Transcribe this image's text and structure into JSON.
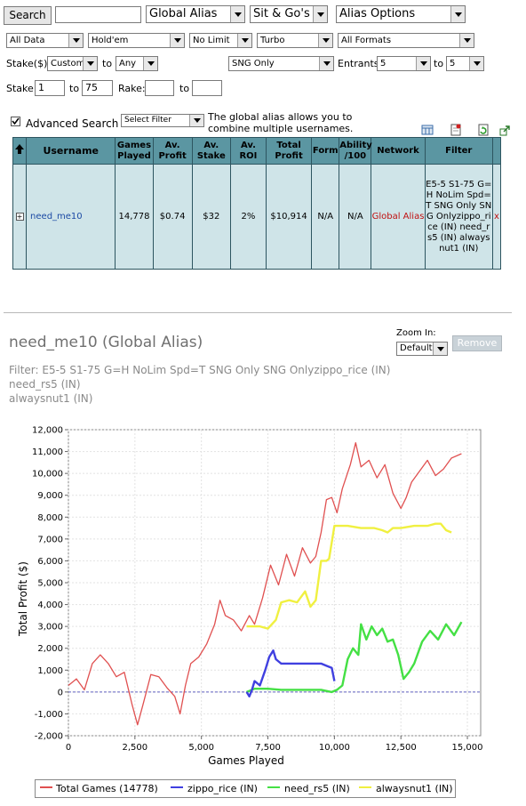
{
  "toolbar": {
    "search_label": "Search",
    "search_value": "",
    "alias_type": "Global Alias",
    "game_type": "Sit & Go's",
    "alias_options": "Alias Options"
  },
  "filters": {
    "data": "All Data",
    "game": "Hold'em",
    "limit": "No Limit",
    "speed": "Turbo",
    "format": "All Formats",
    "stake_label": "Stake($)",
    "stake_mode": "Custom",
    "to_label": "to",
    "stake_to": "Any",
    "sng_type": "SNG Only",
    "entrants_label": "Entrants",
    "entrants_from": "5",
    "entrants_to_label": "to",
    "entrants_to": "5",
    "stake_range_label": "Stake:",
    "stake_from_value": "1",
    "stake_range_to_label": "to",
    "stake_to_value": "75",
    "rake_label": "Rake:",
    "rake_from_value": "",
    "rake_to_label": "to",
    "rake_to_value": ""
  },
  "advanced": {
    "checked": true,
    "label": "Advanced Search",
    "select_filter": "Select Filter",
    "note": "The global alias allows you to combine multiple usernames."
  },
  "table": {
    "columns": [
      "Username",
      "Games Played",
      "Av. Profit",
      "Av. Stake",
      "Av. ROI",
      "Total Profit",
      "Form",
      "Ability /100",
      "Network",
      "Filter"
    ],
    "row": {
      "expand": "+",
      "username": "need_me10",
      "games_played": "14,778",
      "av_profit": "$0.74",
      "av_stake": "$32",
      "av_roi": "2%",
      "total_profit": "$10,914",
      "form": "N/A",
      "ability": "N/A",
      "network": "Global Alias",
      "filter": "E5-5 S1-75 G=H NoLim Spd=T SNG Only SNG Onlyzippo_rice (IN) need_rs5 (IN) alwaysnut1 (IN)",
      "remove": "x"
    }
  },
  "detail": {
    "title": "need_me10 (Global Alias)",
    "zoom_label": "Zoom In:",
    "zoom_value": "Default",
    "remove_label": "Remove",
    "filter_line1": "Filter: E5-5 S1-75 G=H NoLim Spd=T SNG Only SNG Onlyzippo_rice (IN)",
    "filter_line2": "need_rs5 (IN)",
    "filter_line3": "alwaysnut1 (IN)"
  },
  "colors": {
    "header_bg": "#5b96a2",
    "row_bg": "#cfe4e8",
    "total": "#e05050",
    "zippo": "#4040e0",
    "need_rs5": "#44e044",
    "alwaysnut1": "#f0f040"
  },
  "chart_data": {
    "type": "line",
    "xlabel": "Games Played",
    "ylabel": "Total Profit ($)",
    "xlim": [
      0,
      15500
    ],
    "ylim": [
      -2000,
      12000
    ],
    "xticks": [
      "0",
      "2,500",
      "5,000",
      "7,500",
      "10,000",
      "12,500",
      "15,000"
    ],
    "yticks": [
      "12,000",
      "11,000",
      "10,000",
      "9,000",
      "8,000",
      "7,000",
      "6,000",
      "5,000",
      "4,000",
      "3,000",
      "2,000",
      "1,000",
      "0",
      "-1,000",
      "-2,000"
    ],
    "grid": true,
    "legend_position": "bottom",
    "series": [
      {
        "name": "Total Games (14778)",
        "x": [
          0,
          300,
          600,
          900,
          1200,
          1500,
          1800,
          2100,
          2400,
          2600,
          2800,
          3100,
          3400,
          3700,
          4000,
          4200,
          4400,
          4600,
          4900,
          5200,
          5500,
          5700,
          5900,
          6200,
          6500,
          6800,
          7000,
          7300,
          7600,
          7900,
          8200,
          8500,
          8800,
          9100,
          9300,
          9500,
          9700,
          9900,
          10100,
          10300,
          10600,
          10800,
          11000,
          11300,
          11600,
          11900,
          12200,
          12500,
          12700,
          12900,
          13200,
          13500,
          13800,
          14100,
          14400,
          14778
        ],
        "y": [
          300,
          600,
          100,
          1300,
          1700,
          1300,
          700,
          900,
          -600,
          -1500,
          -600,
          800,
          700,
          200,
          -200,
          -1000,
          300,
          1300,
          1600,
          2200,
          3100,
          4200,
          3500,
          3300,
          2800,
          3500,
          3100,
          4300,
          5800,
          4900,
          6300,
          5300,
          6600,
          5900,
          6200,
          7300,
          8800,
          8900,
          8200,
          9300,
          10400,
          11400,
          10300,
          10600,
          9800,
          10400,
          9100,
          8400,
          8900,
          9600,
          10100,
          10600,
          9900,
          10200,
          10700,
          10900
        ]
      },
      {
        "name": "zippo_rice (IN)",
        "x": [
          6700,
          6800,
          6900,
          7000,
          7200,
          7400,
          7550,
          7700,
          7800,
          7900,
          8000,
          8500,
          9000,
          9500,
          9700,
          9900,
          10000
        ],
        "y": [
          0,
          -200,
          100,
          500,
          300,
          1000,
          1600,
          1900,
          1500,
          1400,
          1300,
          1300,
          1300,
          1300,
          1200,
          1100,
          500
        ]
      },
      {
        "name": "need_rs5 (IN)",
        "x": [
          6700,
          7000,
          7500,
          8000,
          8500,
          9000,
          9500,
          9900,
          10100,
          10300,
          10500,
          10700,
          10900,
          11000,
          11200,
          11400,
          11600,
          11800,
          12000,
          12200,
          12400,
          12600,
          12800,
          13000,
          13300,
          13600,
          13900,
          14200,
          14500,
          14778
        ],
        "y": [
          0,
          150,
          150,
          100,
          100,
          100,
          100,
          0,
          100,
          300,
          1500,
          2000,
          1700,
          3100,
          2400,
          3000,
          2600,
          2900,
          2300,
          2400,
          1700,
          600,
          900,
          1300,
          2300,
          2800,
          2400,
          3100,
          2600,
          3200
        ]
      },
      {
        "name": "alwaysnut1 (IN)",
        "x": [
          6700,
          7200,
          7500,
          7800,
          8000,
          8300,
          8600,
          8900,
          9100,
          9300,
          9500,
          9700,
          9800,
          10000,
          10500,
          11000,
          11500,
          11800,
          12000,
          12200,
          12500,
          13000,
          13500,
          13800,
          14000,
          14200,
          14400
        ],
        "y": [
          3000,
          3000,
          2900,
          3300,
          4100,
          4200,
          4100,
          4600,
          3900,
          4200,
          6000,
          6000,
          6100,
          7600,
          7600,
          7500,
          7500,
          7400,
          7300,
          7500,
          7500,
          7600,
          7600,
          7700,
          7700,
          7400,
          7300
        ]
      }
    ]
  }
}
